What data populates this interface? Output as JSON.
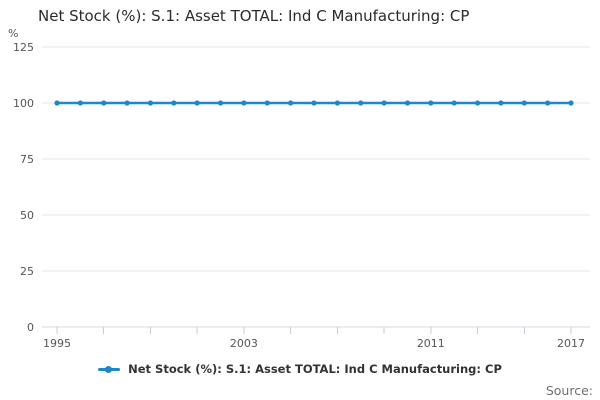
{
  "title": "Net Stock (%): S.1: Asset TOTAL: Ind C Manufacturing: CP",
  "y_axis_unit": "%",
  "legend": {
    "label": "Net Stock (%): S.1: Asset TOTAL: Ind C Manufacturing: CP"
  },
  "source_label": "Source:",
  "colors": {
    "series": "#1d87c9",
    "grid": "#e4e4e4",
    "axis_line": "#d4dae2",
    "tick_mark": "#c6cfda",
    "tick_text": "#555555",
    "title_text": "#2b2b2b",
    "legend_text": "#333333",
    "source_text": "#707070"
  },
  "chart_data": {
    "type": "line",
    "title": "Net Stock (%): S.1: Asset TOTAL: Ind C Manufacturing: CP",
    "xlabel": "",
    "ylabel": "%",
    "ylim": [
      0,
      125
    ],
    "yticks": [
      0,
      25,
      50,
      75,
      100,
      125
    ],
    "xtick_step": 2,
    "xtick_labels": [
      1995,
      2003,
      2011,
      2017
    ],
    "grid": "horizontal",
    "legend_position": "bottom",
    "x": [
      1995,
      1996,
      1997,
      1998,
      1999,
      2000,
      2001,
      2002,
      2003,
      2004,
      2005,
      2006,
      2007,
      2008,
      2009,
      2010,
      2011,
      2012,
      2013,
      2014,
      2015,
      2016,
      2017
    ],
    "series": [
      {
        "name": "Net Stock (%): S.1: Asset TOTAL: Ind C Manufacturing: CP",
        "values": [
          100,
          100,
          100,
          100,
          100,
          100,
          100,
          100,
          100,
          100,
          100,
          100,
          100,
          100,
          100,
          100,
          100,
          100,
          100,
          100,
          100,
          100,
          100
        ]
      }
    ]
  }
}
